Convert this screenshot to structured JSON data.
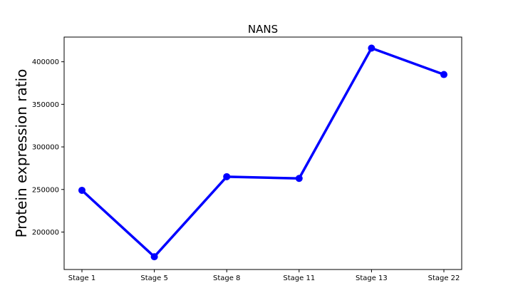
{
  "chart_data": {
    "type": "line",
    "title": "NANS",
    "xlabel": "",
    "ylabel": "Protein expression ratio",
    "categories": [
      "Stage 1",
      "Stage 5",
      "Stage 8",
      "Stage 11",
      "Stage 13",
      "Stage 22"
    ],
    "series": [
      {
        "values": [
          249000,
          171000,
          265000,
          263000,
          416000,
          385000
        ],
        "color": "#0000ff"
      }
    ],
    "y_ticks": [
      200000,
      250000,
      300000,
      350000,
      400000
    ],
    "ylim": [
      156000,
      429000
    ],
    "grid": false,
    "legend": false
  }
}
